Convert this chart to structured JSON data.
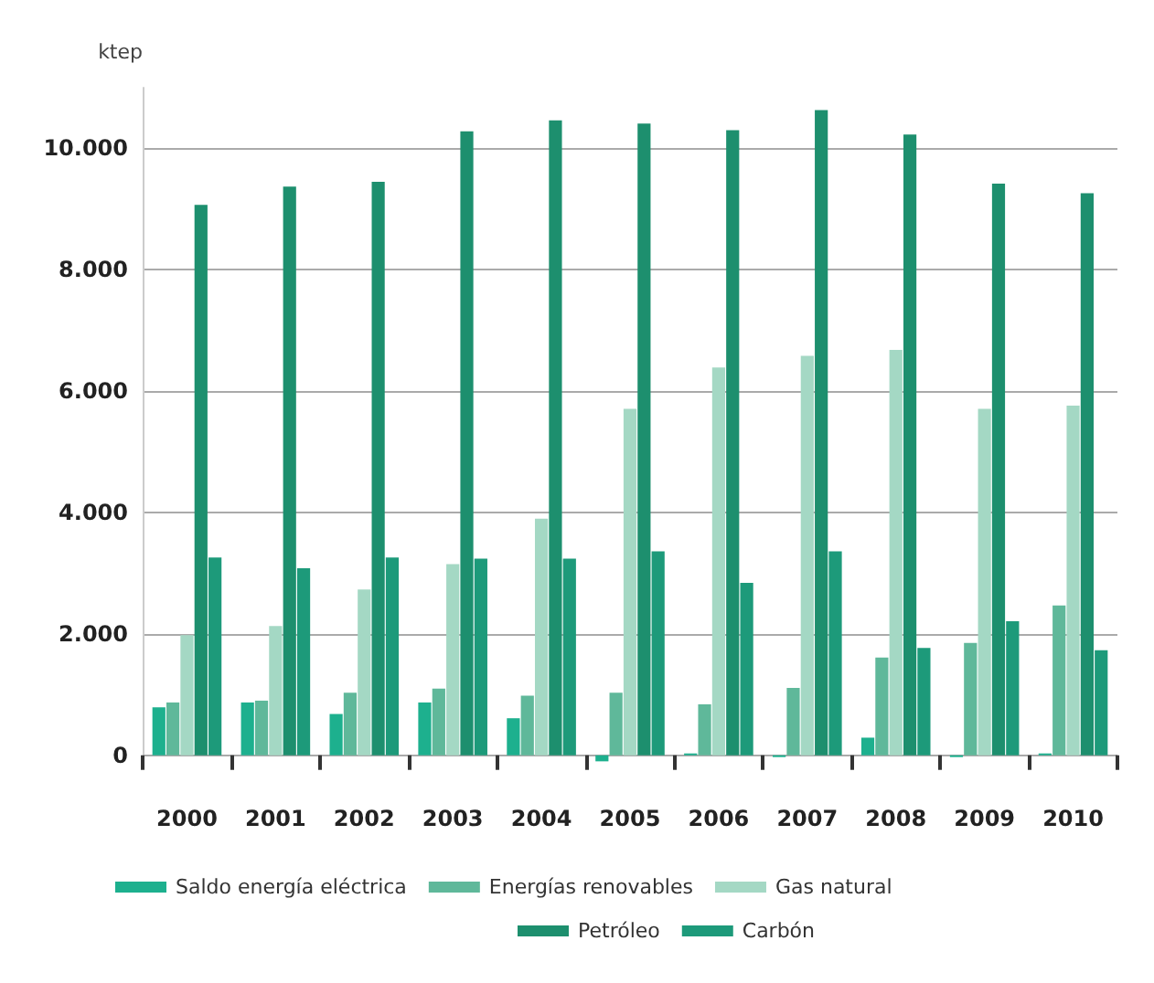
{
  "chart_data": {
    "type": "bar",
    "ylabel": "ktep",
    "categories": [
      "2000",
      "2001",
      "2002",
      "2003",
      "2004",
      "2005",
      "2006",
      "2007",
      "2008",
      "2009",
      "2010"
    ],
    "series": [
      {
        "name": "Saldo energía eléctrica",
        "color": "#1db08e",
        "values": [
          790,
          870,
          680,
          870,
          610,
          -100,
          30,
          -30,
          290,
          -30,
          30
        ]
      },
      {
        "name": "Energías renovables",
        "color": "#5fb89a",
        "values": [
          870,
          900,
          1030,
          1100,
          980,
          1030,
          840,
          1110,
          1610,
          1850,
          2470
        ]
      },
      {
        "name": "Gas natural",
        "color": "#a4d8c4",
        "values": [
          1980,
          2130,
          2730,
          3150,
          3900,
          5710,
          6390,
          6580,
          6680,
          5710,
          5760
        ]
      },
      {
        "name": "Petróleo",
        "color": "#1d8f6e",
        "values": [
          9070,
          9370,
          9450,
          10280,
          10460,
          10410,
          10300,
          10630,
          10230,
          9420,
          9260
        ]
      },
      {
        "name": "Carbón",
        "color": "#1d9a7a",
        "values": [
          3260,
          3080,
          3260,
          3240,
          3240,
          3360,
          2840,
          3360,
          1770,
          2210,
          1730
        ]
      }
    ],
    "ylim": [
      -200,
      11000
    ],
    "yticks": [
      0,
      {
        "value": 2000,
        "label": "2.000"
      },
      {
        "value": 4000,
        "label": "4.000"
      },
      {
        "value": 6000,
        "label": "6.000"
      },
      {
        "value": 8000,
        "label": "8.000"
      },
      {
        "value": 10000,
        "label": "10.000"
      }
    ],
    "grid": "y",
    "legend": "bottom"
  }
}
